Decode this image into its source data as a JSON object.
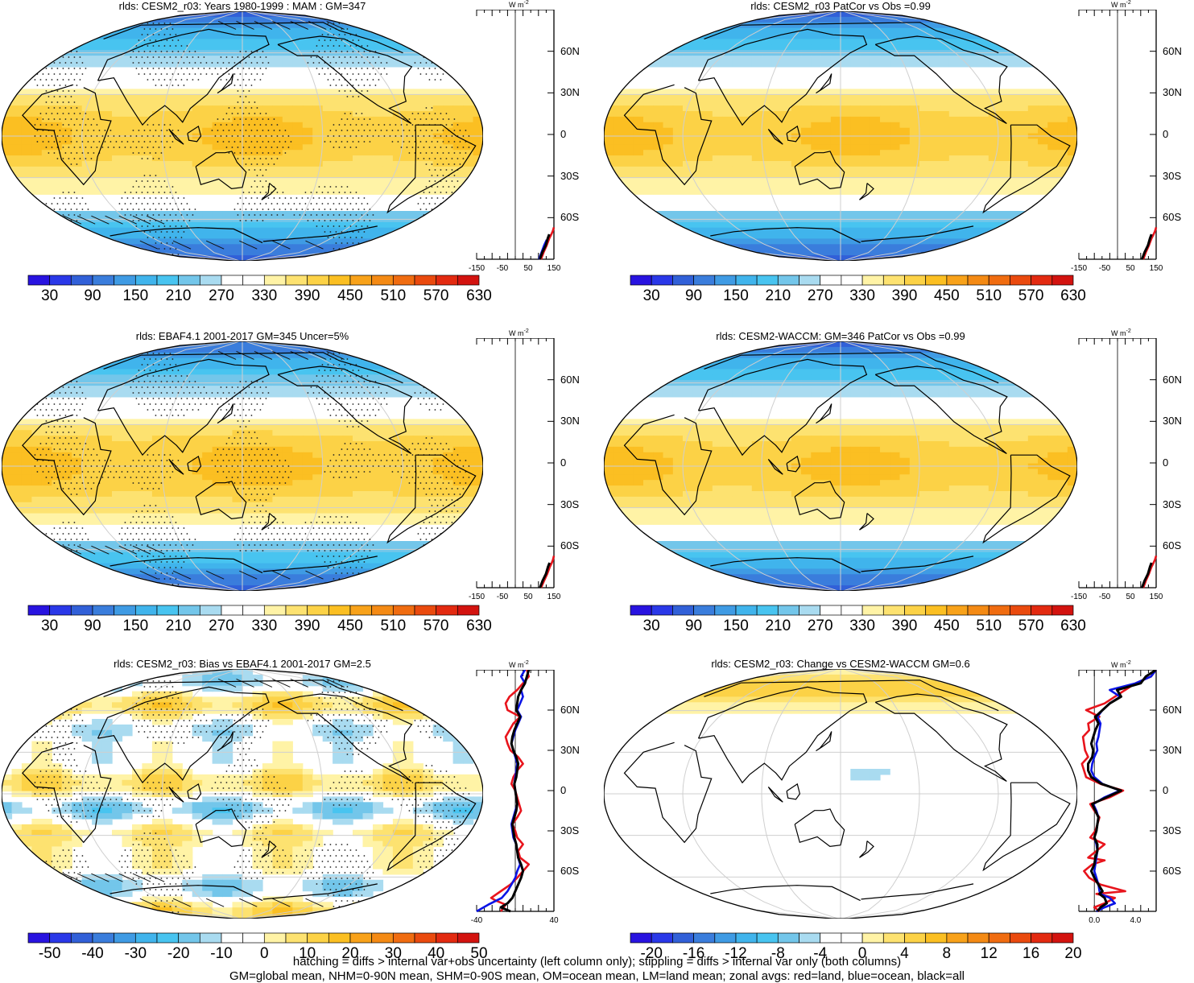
{
  "footer": {
    "line1": "hatching = diffs > internal var+obs uncertainty (left column only); stippling = diffs > internal var only (both columns)",
    "line2": "GM=global mean, NHM=0-90N mean, SHM=0-90S mean, OM=ocean mean, LM=land mean; zonal avgs: red=land, blue=ocean, black=all"
  },
  "units_label": "W m",
  "units_exp": "-2",
  "lat_ticks": [
    "60N",
    "30N",
    "0",
    "30S",
    "60S"
  ],
  "chart_data": [
    {
      "type": "heatmap",
      "title": "rlds: CESM2_r03: Years 1980-1999 : MAM : GM=347",
      "colorbar_labels": [
        "30",
        "90",
        "150",
        "210",
        "270",
        "330",
        "390",
        "450",
        "510",
        "570",
        "630"
      ],
      "zonal_xticks": [
        "-150",
        "-50",
        "50",
        "150"
      ],
      "zonal_xlim": [
        -150,
        150
      ],
      "zonal_series": [
        {
          "color": "#e8141c",
          "lat": [
            -90,
            -85,
            -80,
            -75,
            -72,
            -70,
            -67
          ],
          "values": [
            100,
            110,
            122,
            132,
            140,
            145,
            150
          ]
        },
        {
          "color": "#0a14e6",
          "lat": [
            -90,
            -85,
            -80,
            -76
          ],
          "values": [
            92,
            102,
            112,
            122
          ]
        },
        {
          "color": "#000000",
          "lat": [
            -90,
            -85,
            -80,
            -75,
            -72
          ],
          "values": [
            95,
            105,
            118,
            126,
            132
          ]
        }
      ],
      "stipple": true,
      "hatch": true,
      "style": "mean"
    },
    {
      "type": "heatmap",
      "title": "rlds: CESM2_r03 PatCor vs Obs =0.99",
      "colorbar_labels": [
        "30",
        "90",
        "150",
        "210",
        "270",
        "330",
        "390",
        "450",
        "510",
        "570",
        "630"
      ],
      "zonal_xticks": [
        "-150",
        "-50",
        "50",
        "150"
      ],
      "zonal_xlim": [
        -150,
        150
      ],
      "zonal_series": [
        {
          "color": "#e8141c",
          "lat": [
            -90,
            -85,
            -80,
            -75,
            -72,
            -70,
            -67
          ],
          "values": [
            100,
            110,
            122,
            132,
            140,
            145,
            150
          ]
        },
        {
          "color": "#000000",
          "lat": [
            -90,
            -85,
            -80,
            -75,
            -72
          ],
          "values": [
            95,
            105,
            118,
            126,
            132
          ]
        }
      ],
      "stipple": false,
      "hatch": false,
      "style": "mean"
    },
    {
      "type": "heatmap",
      "title": "rlds: EBAF4.1 2001-2017 GM=345 Uncer=5%",
      "colorbar_labels": [
        "30",
        "90",
        "150",
        "210",
        "270",
        "330",
        "390",
        "450",
        "510",
        "570",
        "630"
      ],
      "zonal_xticks": [
        "-150",
        "-50",
        "50",
        "150"
      ],
      "zonal_xlim": [
        -150,
        150
      ],
      "zonal_series": [
        {
          "color": "#e8141c",
          "lat": [
            -90,
            -85,
            -80,
            -75,
            -72,
            -70,
            -67
          ],
          "values": [
            100,
            112,
            124,
            134,
            142,
            146,
            150
          ]
        },
        {
          "color": "#000000",
          "lat": [
            -90,
            -85,
            -80,
            -75,
            -72
          ],
          "values": [
            96,
            106,
            119,
            127,
            133
          ]
        }
      ],
      "stipple": true,
      "hatch": true,
      "style": "mean"
    },
    {
      "type": "heatmap",
      "title": "rlds: CESM2-WACCM: GM=346 PatCor vs Obs =0.99",
      "colorbar_labels": [
        "30",
        "90",
        "150",
        "210",
        "270",
        "330",
        "390",
        "450",
        "510",
        "570",
        "630"
      ],
      "zonal_xticks": [
        "-150",
        "-50",
        "50",
        "150"
      ],
      "zonal_xlim": [
        -150,
        150
      ],
      "zonal_series": [
        {
          "color": "#e8141c",
          "lat": [
            -90,
            -85,
            -80,
            -75,
            -72,
            -70,
            -67
          ],
          "values": [
            100,
            110,
            122,
            132,
            140,
            145,
            150
          ]
        },
        {
          "color": "#000000",
          "lat": [
            -90,
            -85,
            -80,
            -75,
            -72
          ],
          "values": [
            95,
            105,
            118,
            126,
            132
          ]
        }
      ],
      "stipple": false,
      "hatch": false,
      "style": "mean"
    },
    {
      "type": "heatmap",
      "title": "rlds: CESM2_r03: Bias vs EBAF4.1 2001-2017 GM=2.5",
      "colorbar_labels": [
        "-50",
        "-40",
        "-30",
        "-20",
        "-10",
        "0",
        "10",
        "20",
        "30",
        "40",
        "50"
      ],
      "zonal_xticks": [
        "-40",
        "40"
      ],
      "zonal_xlim": [
        -40,
        40
      ],
      "zonal_series": [
        {
          "color": "#e8141c",
          "lat": [
            -90,
            -85,
            -82,
            -80,
            -75,
            -70,
            -65,
            -60,
            -55,
            -50,
            -45,
            -40,
            -35,
            -30,
            -25,
            -20,
            -15,
            -10,
            -5,
            0,
            5,
            10,
            15,
            20,
            25,
            30,
            35,
            40,
            45,
            50,
            55,
            60,
            65,
            70,
            75,
            80,
            85,
            90
          ],
          "values": [
            -15,
            -10,
            -20,
            -25,
            -15,
            -5,
            2,
            8,
            14,
            5,
            3,
            8,
            2,
            0,
            -3,
            2,
            6,
            4,
            2,
            0,
            -4,
            -2,
            2,
            8,
            3,
            -5,
            -8,
            -10,
            -6,
            -2,
            5,
            -8,
            -10,
            -6,
            2,
            8,
            14,
            12
          ]
        },
        {
          "color": "#0a14e6",
          "lat": [
            -90,
            -85,
            -80,
            -75,
            -70,
            -65,
            -60,
            -55,
            -50,
            -45,
            -40,
            -35,
            -30,
            -25,
            -20,
            -15,
            -10,
            -5,
            0,
            5,
            10,
            15,
            20,
            25,
            30,
            35,
            40,
            45,
            50,
            55,
            60,
            65,
            70,
            75,
            80,
            85,
            90
          ],
          "values": [
            -40,
            -28,
            -14,
            -8,
            -4,
            0,
            2,
            5,
            3,
            2,
            1,
            -2,
            -3,
            -4,
            -2,
            0,
            2,
            1,
            0,
            -1,
            0,
            1,
            2,
            0,
            -2,
            -4,
            -2,
            0,
            3,
            6,
            2,
            5,
            8,
            6,
            10,
            6,
            10
          ]
        },
        {
          "color": "#000000",
          "lat": [
            -90,
            -87,
            -84,
            -80,
            -75,
            -70,
            -65,
            -60,
            -55,
            -50,
            -45,
            -40,
            -35,
            -30,
            -25,
            -20,
            -15,
            -10,
            -5,
            0,
            5,
            10,
            15,
            20,
            25,
            30,
            35,
            40,
            45,
            50,
            55,
            60,
            65,
            70,
            75,
            80,
            85,
            90
          ],
          "values": [
            -5,
            -15,
            -8,
            -3,
            0,
            3,
            6,
            8,
            6,
            3,
            2,
            1,
            -1,
            -2,
            -3,
            -1,
            1,
            2,
            1,
            0,
            -1,
            1,
            2,
            3,
            1,
            -2,
            -4,
            -3,
            -1,
            2,
            5,
            1,
            2,
            3,
            6,
            10,
            12,
            14
          ]
        }
      ],
      "stipple": true,
      "hatch": true,
      "style": "bias"
    },
    {
      "type": "heatmap",
      "title": "rlds: CESM2_r03: Change vs CESM2-WACCM GM=0.6",
      "colorbar_labels": [
        "-20",
        "-16",
        "-12",
        "-8",
        "-4",
        "0",
        "4",
        "8",
        "12",
        "16",
        "20"
      ],
      "zonal_xticks": [
        "0.0",
        "4.0"
      ],
      "zonal_xlim": [
        -1.5,
        6
      ],
      "zonal_series": [
        {
          "color": "#e8141c",
          "lat": [
            -90,
            -87,
            -84,
            -80,
            -77,
            -75,
            -70,
            -65,
            -60,
            -55,
            -52,
            -50,
            -45,
            -40,
            -35,
            -30,
            -25,
            -20,
            -15,
            -10,
            -5,
            0,
            5,
            10,
            15,
            20,
            25,
            30,
            35,
            40,
            45,
            50,
            55,
            60,
            65,
            70,
            75,
            80,
            85,
            90
          ],
          "values": [
            0.5,
            0,
            1,
            2,
            0.2,
            3,
            0.6,
            -0.5,
            -1,
            -0.2,
            1,
            -0.6,
            0.2,
            1,
            -0.4,
            0.1,
            0.3,
            0.5,
            0,
            -0.4,
            1.5,
            2.8,
            0.6,
            -0.8,
            -1,
            -1.2,
            -0.6,
            -0.9,
            -1,
            -1.1,
            -0.5,
            -0.6,
            0.5,
            -0.8,
            1,
            2,
            3,
            4,
            5.5,
            6
          ]
        },
        {
          "color": "#0a14e6",
          "lat": [
            -90,
            -87,
            -84,
            -80,
            -77,
            -75,
            -70,
            -65,
            -60,
            -55,
            -50,
            -45,
            -40,
            -35,
            -30,
            -25,
            -20,
            -15,
            -10,
            -5,
            0,
            5,
            10,
            15,
            20,
            25,
            30,
            35,
            40,
            45,
            50,
            55,
            60,
            65,
            70,
            75,
            80,
            85,
            90
          ],
          "values": [
            0.2,
            1,
            2,
            1.5,
            0.6,
            0.5,
            0.4,
            0.2,
            0,
            0.1,
            0.2,
            0.3,
            0.2,
            0,
            0.2,
            0.3,
            0.4,
            0.2,
            -0.1,
            1,
            2.5,
            0.8,
            0,
            -0.3,
            -0.2,
            0,
            0.3,
            0.2,
            0.4,
            0.5,
            0.6,
            0.3,
            0.8,
            1.5,
            2.5,
            1.5,
            4,
            5.5,
            6
          ]
        },
        {
          "color": "#000000",
          "lat": [
            -90,
            -87,
            -84,
            -80,
            -77,
            -75,
            -70,
            -65,
            -60,
            -55,
            -50,
            -45,
            -40,
            -35,
            -30,
            -25,
            -20,
            -15,
            -10,
            -5,
            0,
            5,
            10,
            15,
            20,
            25,
            30,
            35,
            40,
            45,
            50,
            55,
            60,
            65,
            70,
            75,
            80,
            85,
            90
          ],
          "values": [
            0.3,
            0.6,
            1.2,
            1,
            0.5,
            0.8,
            0.4,
            0,
            -0.3,
            0,
            0.1,
            0.3,
            0.3,
            0,
            0.2,
            0.3,
            0.4,
            0.1,
            -0.2,
            1.2,
            2.6,
            0.7,
            -0.3,
            -0.6,
            -0.6,
            -0.2,
            -0.1,
            -0.3,
            -0.1,
            0.1,
            0.4,
            0.1,
            0.8,
            1.5,
            2.6,
            2.2,
            4.5,
            5,
            6
          ]
        }
      ],
      "stipple": false,
      "hatch": false,
      "style": "change"
    }
  ]
}
